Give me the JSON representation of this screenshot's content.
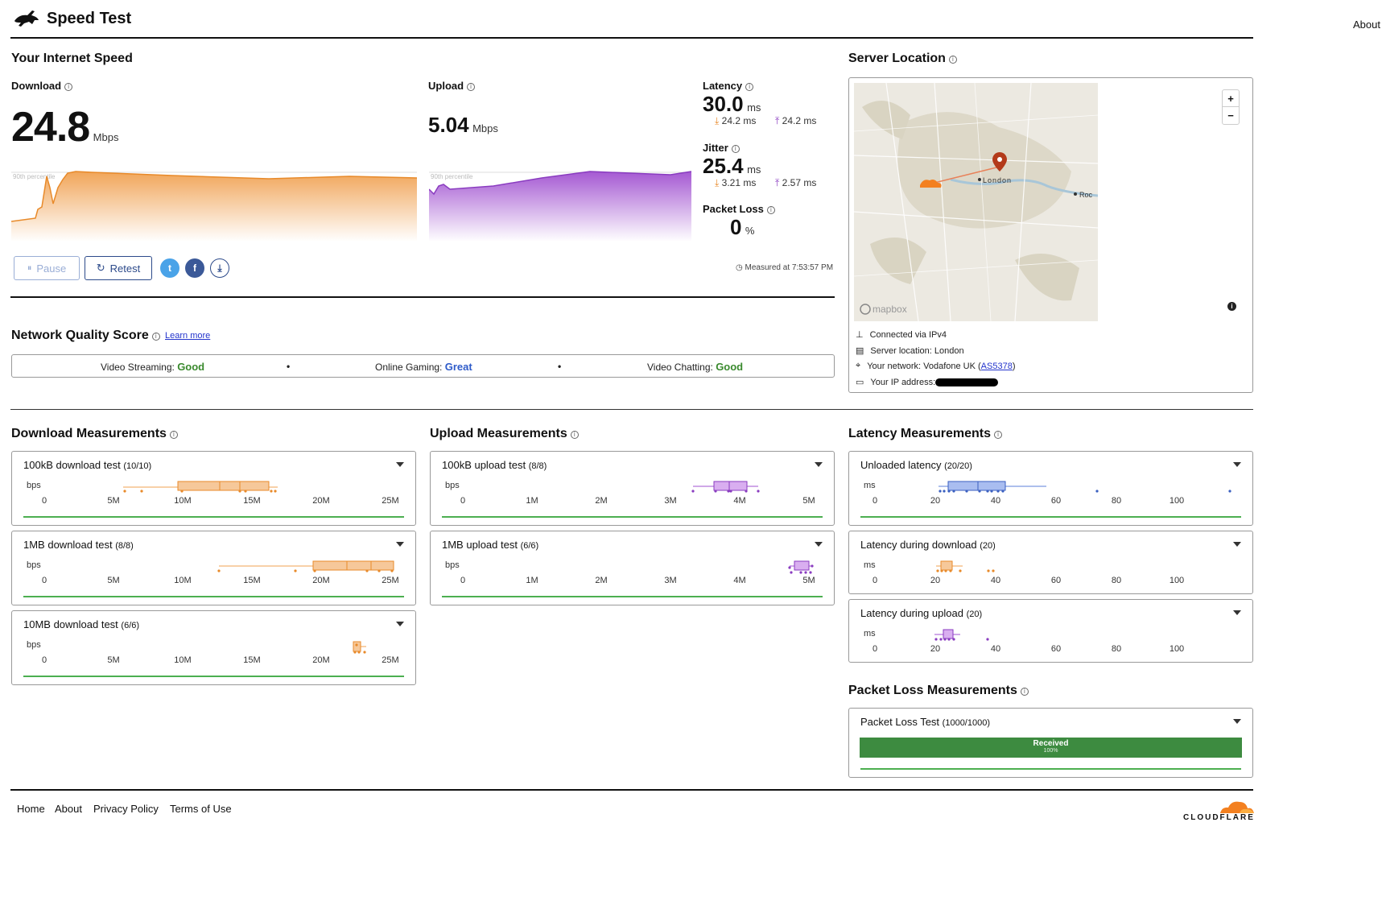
{
  "header": {
    "title": "Speed Test",
    "about": "About"
  },
  "speed": {
    "section_title": "Your Internet Speed",
    "download": {
      "label": "Download",
      "value": "24.8",
      "unit": "Mbps",
      "percentile": "90th percentile"
    },
    "upload": {
      "label": "Upload",
      "value": "5.04",
      "unit": "Mbps",
      "percentile": "90th percentile"
    },
    "latency": {
      "label": "Latency",
      "value": "30.0",
      "unit": "ms",
      "down": "24.2 ms",
      "up": "24.2 ms"
    },
    "jitter": {
      "label": "Jitter",
      "value": "25.4",
      "unit": "ms",
      "down": "3.21 ms",
      "up": "2.57 ms"
    },
    "packet_loss": {
      "label": "Packet Loss",
      "value": "0",
      "unit": "%"
    },
    "pause_label": "Pause",
    "retest_label": "Retest",
    "measured_at": "Measured at 7:53:57 PM"
  },
  "network_quality": {
    "title": "Network Quality Score",
    "learn_more": "Learn more",
    "items": [
      {
        "label": "Video Streaming:",
        "value": "Good",
        "color": "#3a8a2e"
      },
      {
        "label": "Online Gaming:",
        "value": "Great",
        "color": "#2e5bc9"
      },
      {
        "label": "Video Chatting:",
        "value": "Good",
        "color": "#3a8a2e"
      }
    ]
  },
  "server": {
    "title": "Server Location",
    "map_city": "London",
    "map_city2": "Roc",
    "mapbox": "mapbox",
    "zoom_in": "+",
    "zoom_out": "−",
    "rows": [
      {
        "icon": "network-icon",
        "text": "Connected via IPv4"
      },
      {
        "icon": "server-icon",
        "text": "Server location: London"
      },
      {
        "icon": "pin-icon",
        "text": "Your network: Vodafone UK (",
        "link": "AS5378",
        "after": ")"
      },
      {
        "icon": "window-icon",
        "text": "Your IP address:"
      }
    ]
  },
  "measurements": {
    "download_title": "Download Measurements",
    "upload_title": "Upload Measurements",
    "latency_title": "Latency Measurements",
    "packet_loss_title": "Packet Loss Measurements",
    "bps": "bps",
    "ms": "ms",
    "bw_ticks": [
      "0",
      "5M",
      "10M",
      "15M",
      "20M",
      "25M"
    ],
    "up_ticks": [
      "0",
      "1M",
      "2M",
      "3M",
      "4M",
      "5M"
    ],
    "lat_ticks": [
      "20",
      "40",
      "60",
      "80",
      "100"
    ],
    "lat_zero": "0",
    "cards": {
      "d100k": {
        "title": "100kB download test",
        "count": "(10/10)"
      },
      "d1m": {
        "title": "1MB download test",
        "count": "(8/8)"
      },
      "d10m": {
        "title": "10MB download test",
        "count": "(6/6)"
      },
      "u100k": {
        "title": "100kB upload test",
        "count": "(8/8)"
      },
      "u1m": {
        "title": "1MB upload test",
        "count": "(6/6)"
      },
      "lu": {
        "title": "Unloaded latency",
        "count": "(20/20)"
      },
      "ld": {
        "title": "Latency during download",
        "count": "(20)"
      },
      "lup": {
        "title": "Latency during upload",
        "count": "(20)"
      },
      "pl": {
        "title": "Packet Loss Test",
        "count": "(1000/1000)"
      }
    },
    "received_label": "Received",
    "received_pct": "100%"
  },
  "footer": {
    "links": [
      "Home",
      "About",
      "Privacy Policy",
      "Terms of Use"
    ],
    "brand": "CLOUDFLARE"
  },
  "colors": {
    "download": "#f0a050",
    "upload": "#a050d0",
    "latency": "#5b7fd9",
    "good": "#3a8a2e",
    "great": "#2e5bc9",
    "green_bar": "#3d8b40"
  }
}
